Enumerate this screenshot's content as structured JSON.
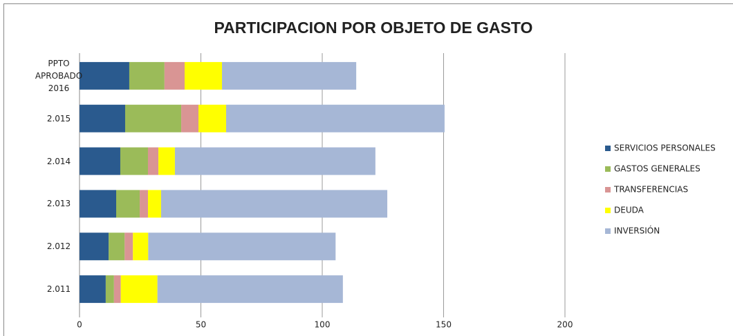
{
  "chart_data": {
    "type": "stacked_barh",
    "title": "PARTICIPACION POR OBJETO DE GASTO",
    "categories": [
      "PPTO APROBADO 2016",
      "2.015",
      "2.014",
      "2.013",
      "2.012",
      "2.011"
    ],
    "series": [
      {
        "name": "SERVICIOS PERSONALES",
        "color": "#2a5a8e",
        "values": [
          20.5,
          18.8,
          16.8,
          15.1,
          12,
          10.8
        ]
      },
      {
        "name": "GASTOS GENERALES",
        "color": "#9bbb59",
        "values": [
          14.5,
          23.1,
          11.4,
          9.7,
          6.6,
          3.4
        ]
      },
      {
        "name": "TRANSFERENCIAS",
        "color": "#d99594",
        "values": [
          8.3,
          7.1,
          4.3,
          3.4,
          3.4,
          2.8
        ]
      },
      {
        "name": "DEUDA",
        "color": "#ffff00",
        "values": [
          15.4,
          11.4,
          6.8,
          5.4,
          6.3,
          15.1
        ]
      },
      {
        "name": "INVERSIÓN",
        "color": "#a6b7d6",
        "values": [
          55.3,
          90,
          82.6,
          93.2,
          77.2,
          76.4
        ]
      }
    ],
    "xlim": [
      0,
      200
    ],
    "xticks": [
      0,
      50,
      100,
      150,
      200
    ],
    "grid": true,
    "legend": "right"
  }
}
